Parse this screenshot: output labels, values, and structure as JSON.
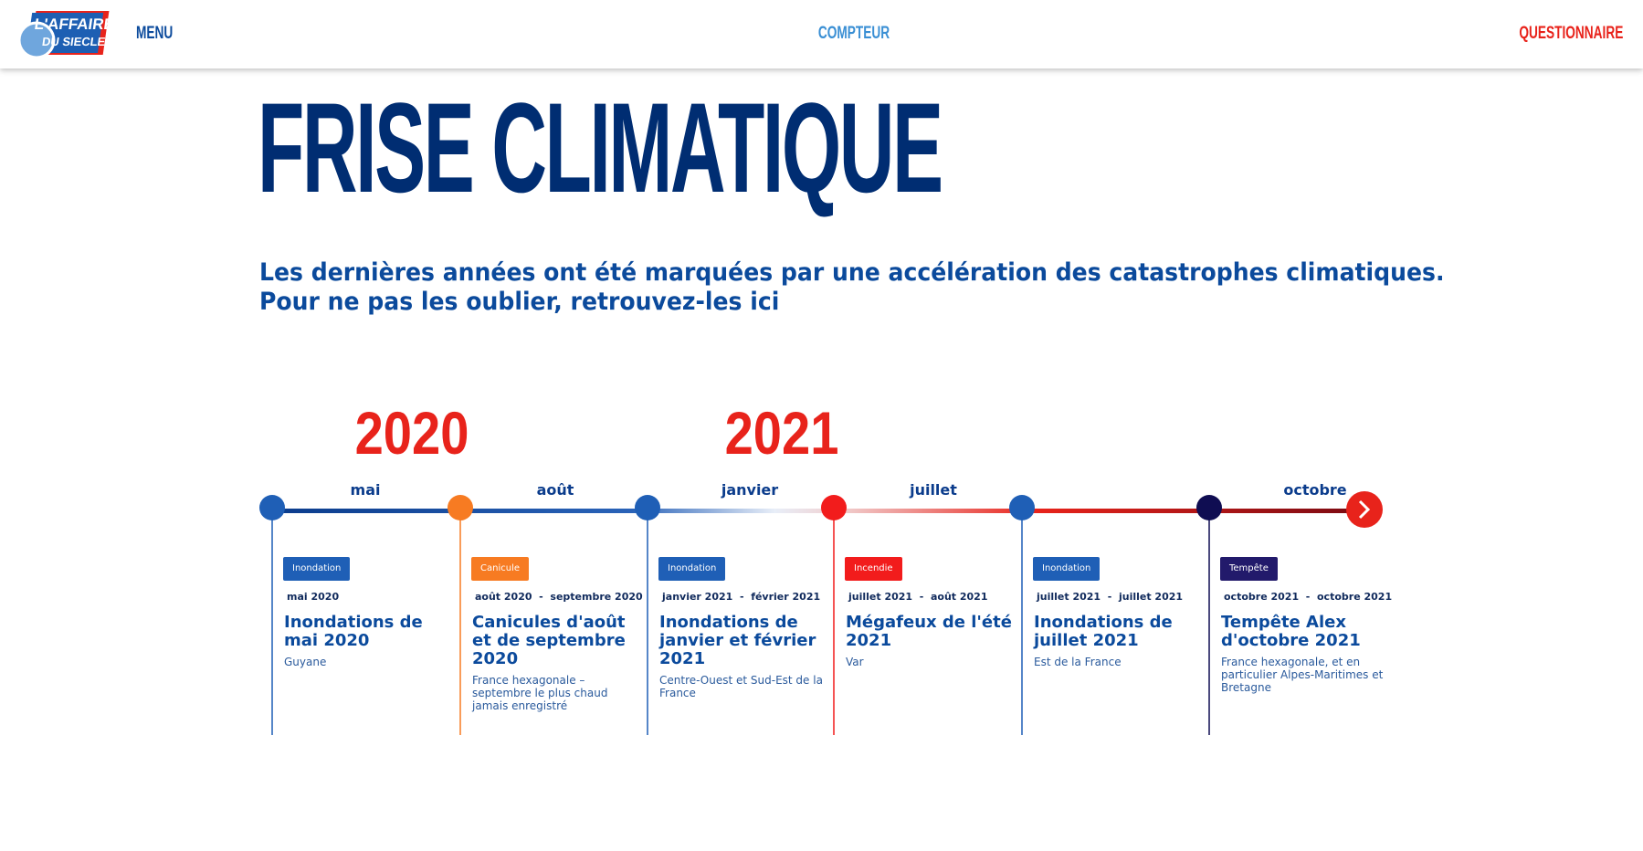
{
  "header": {
    "logo": {
      "line1": "L'AFFAIRE",
      "line2": "DU SIECLE"
    },
    "nav": [
      "MENU",
      "COMPTEUR",
      "QUESTIONNAIRE"
    ]
  },
  "title": "FRISE CLIMATIQUE",
  "subtitle": [
    "Les dernières années ont été marquées par une accélération des catastrophes climatiques.",
    "Pour ne pas les oublier, retrouvez-les ici"
  ],
  "years": [
    "2020",
    "2021"
  ],
  "months": [
    "mai",
    "août",
    "janvier",
    "juillet",
    "octobre"
  ],
  "events": [
    {
      "tag": "Inondation",
      "start": "mai 2020",
      "title": "Inondations de mai 2020",
      "location": "Guyane"
    },
    {
      "tag": "Canicule",
      "start": "août 2020",
      "end": "septembre 2020",
      "title": "Canicules d'août et de septembre 2020",
      "location": "France hexagonale – septembre le plus chaud jamais enregistré"
    },
    {
      "tag": "Inondation",
      "start": "janvier 2021",
      "end": "février 2021",
      "title": "Inondations de janvier et février 2021",
      "location": "Centre-Ouest et Sud-Est de la France"
    },
    {
      "tag": "Incendie",
      "start": "juillet 2021",
      "end": "août 2021",
      "title": "Mégafeux de l'été 2021",
      "location": "Var"
    },
    {
      "tag": "Inondation",
      "start": "juillet 2021",
      "end": "juillet 2021",
      "title": "Inondations de juillet 2021",
      "location": "Est de la France"
    },
    {
      "tag": "Tempête",
      "start": "octobre 2021",
      "end": "octobre 2021",
      "title": "Tempête Alex d'octobre 2021",
      "location": "France hexagonale, et en particulier Alpes-Maritimes et Bretagne"
    }
  ]
}
